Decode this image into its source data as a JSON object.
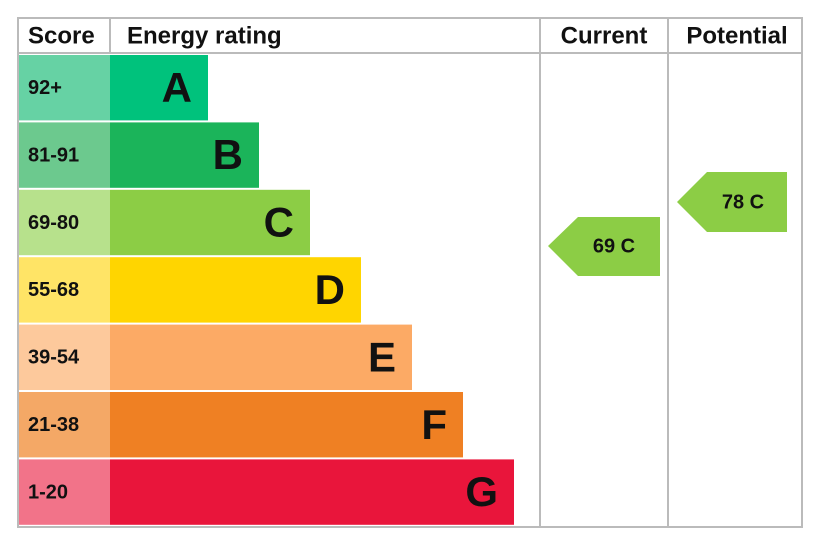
{
  "header": {
    "score": "Score",
    "rating": "Energy rating",
    "current": "Current",
    "potential": "Potential"
  },
  "bands": [
    {
      "score": "92+",
      "letter": "A",
      "color": "#00c27c",
      "score_color": "#66d2a4"
    },
    {
      "score": "81-91",
      "letter": "B",
      "color": "#1bb45a",
      "score_color": "#6cc98e"
    },
    {
      "score": "69-80",
      "letter": "C",
      "color": "#8ccd45",
      "score_color": "#b7e18c"
    },
    {
      "score": "55-68",
      "letter": "D",
      "color": "#ffd500",
      "score_color": "#ffe466"
    },
    {
      "score": "39-54",
      "letter": "E",
      "color": "#fcaa65",
      "score_color": "#fdc99c"
    },
    {
      "score": "21-38",
      "letter": "F",
      "color": "#ef8023",
      "score_color": "#f4a866"
    },
    {
      "score": "1-20",
      "letter": "G",
      "color": "#e9153b",
      "score_color": "#f27389"
    }
  ],
  "current": {
    "label": "69 C",
    "color": "#8ccd45"
  },
  "potential": {
    "label": "78 C",
    "color": "#8ccd45"
  }
}
